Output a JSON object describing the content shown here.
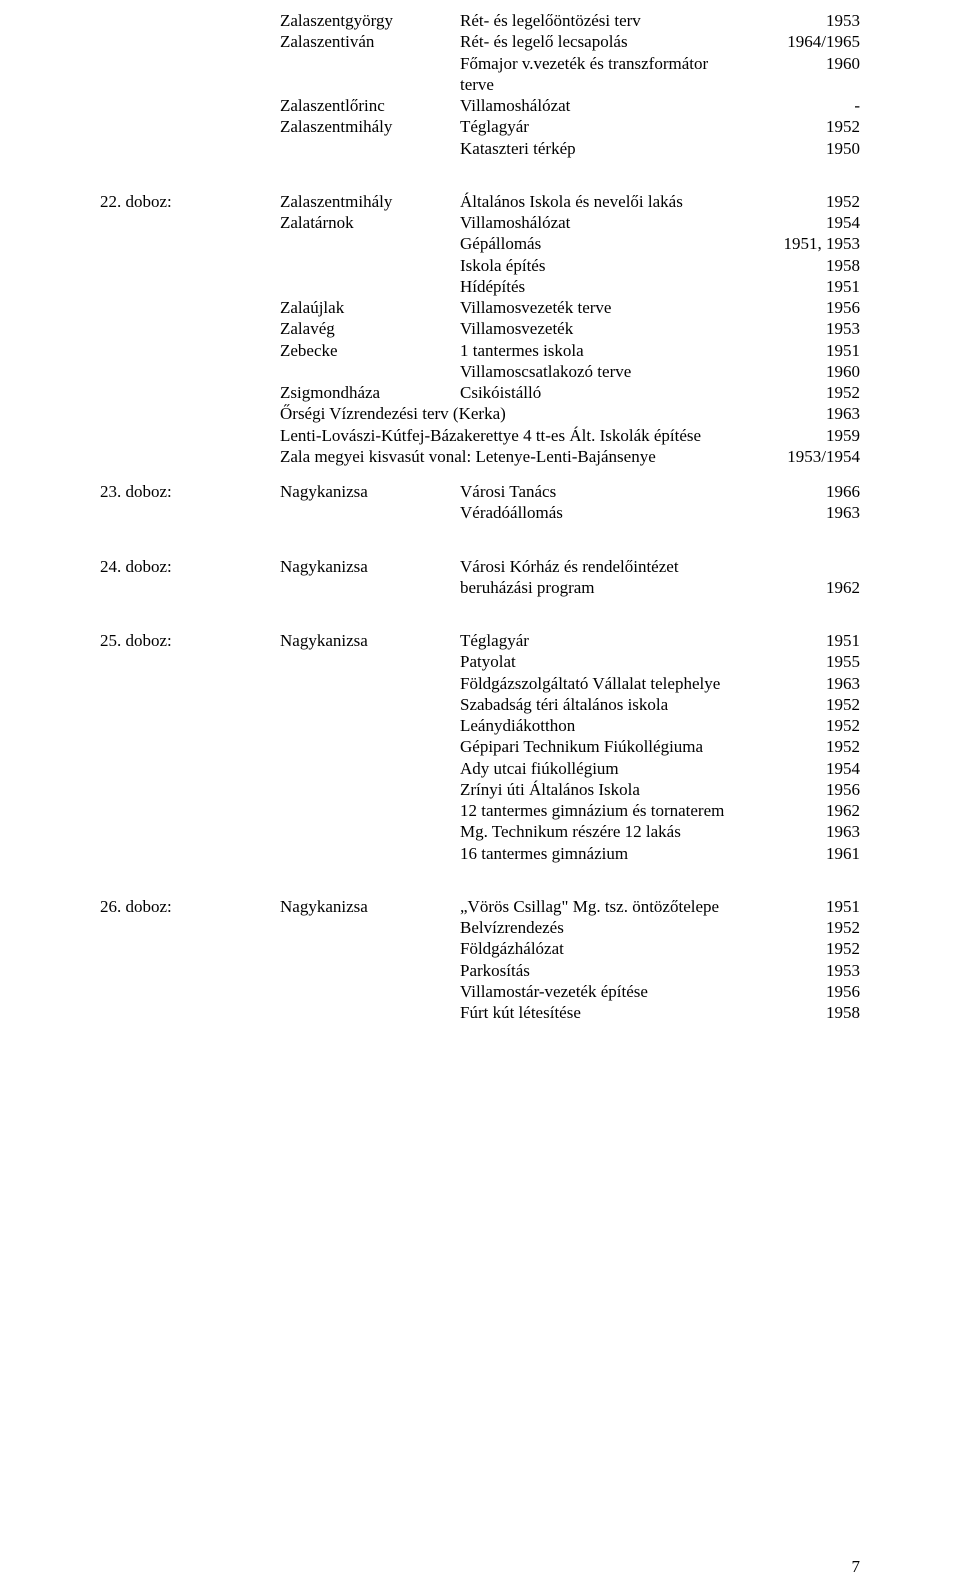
{
  "block_top": {
    "rows": [
      {
        "c1": "Zalaszentgyörgy",
        "c2": "Rét- és legelőöntözési terv",
        "c3": "1953"
      },
      {
        "c1": "Zalaszentiván",
        "c2": "Rét- és legelő lecsapolás",
        "c3": "1964/1965"
      },
      {
        "c1": "",
        "c2": "Főmajor v.vezeték és transzformátor",
        "c3": "1960"
      },
      {
        "c1": "",
        "c2": "terve",
        "c3": ""
      },
      {
        "c1": "Zalaszentlőrinc",
        "c2": "Villamoshálózat",
        "c3": "-"
      },
      {
        "c1": "Zalaszentmihály",
        "c2": "Téglagyár",
        "c3": "1952"
      },
      {
        "c1": "",
        "c2": "Kataszteri térkép",
        "c3": "1950"
      }
    ]
  },
  "block22": {
    "label": "22. doboz:",
    "rows": [
      {
        "c1": "Zalaszentmihály",
        "c2": "Általános Iskola és nevelői lakás",
        "c3": "1952"
      },
      {
        "c1": "Zalatárnok",
        "c2": "Villamoshálózat",
        "c3": "1954"
      },
      {
        "c1": "",
        "c2": "Gépállomás",
        "c3": "1951, 1953"
      },
      {
        "c1": "",
        "c2": "Iskola építés",
        "c3": "1958"
      },
      {
        "c1": "",
        "c2": "Hídépítés",
        "c3": "1951"
      },
      {
        "c1": "Zalaújlak",
        "c2": "Villamosvezeték terve",
        "c3": "1956"
      },
      {
        "c1": "Zalavég",
        "c2": "Villamosvezeték",
        "c3": "1953"
      },
      {
        "c1": "Zebecke",
        "c2": "1 tantermes iskola",
        "c3": "1951"
      },
      {
        "c1": "",
        "c2": "Villamoscsatlakozó terve",
        "c3": "1960"
      },
      {
        "c1": "Zsigmondháza",
        "c2": "Csikóistálló",
        "c3": "1952"
      }
    ],
    "tailrows": [
      {
        "text": "Őrségi Vízrendezési terv (Kerka)",
        "year": "1963"
      },
      {
        "text": "Lenti-Lovászi-Kútfej-Bázakerettye 4 tt-es Ált. Iskolák építése",
        "year": "1959"
      },
      {
        "text": "Zala megyei kisvasút vonal: Letenye-Lenti-Bajánsenye",
        "year": "1953/1954"
      }
    ]
  },
  "block23": {
    "label": "23. doboz:",
    "rows": [
      {
        "c1": "Nagykanizsa",
        "c2": "Városi Tanács",
        "c3": "1966"
      },
      {
        "c1": "",
        "c2": "Véradóállomás",
        "c3": "1963"
      }
    ]
  },
  "block24": {
    "label": "24. doboz:",
    "rows": [
      {
        "c1": "Nagykanizsa",
        "c2": "Városi Kórház és rendelőintézet",
        "c3": ""
      },
      {
        "c1": "",
        "c2": "beruházási program",
        "c3": "1962"
      }
    ]
  },
  "block25": {
    "label": "25. doboz:",
    "rows": [
      {
        "c1": "Nagykanizsa",
        "c2": "Téglagyár",
        "c3": "1951"
      },
      {
        "c1": "",
        "c2": "Patyolat",
        "c3": "1955"
      },
      {
        "c1": "",
        "c2": "Földgázszolgáltató Vállalat telephelye",
        "c3": "1963"
      },
      {
        "c1": "",
        "c2": "Szabadság téri általános iskola",
        "c3": "1952"
      },
      {
        "c1": "",
        "c2": "Leánydiákotthon",
        "c3": "1952"
      },
      {
        "c1": "",
        "c2": "Gépipari Technikum Fiúkollégiuma",
        "c3": "1952"
      },
      {
        "c1": "",
        "c2": "Ady utcai fiúkollégium",
        "c3": "1954"
      },
      {
        "c1": "",
        "c2": "Zrínyi úti Általános Iskola",
        "c3": "1956"
      },
      {
        "c1": "",
        "c2": "12 tantermes gimnázium és tornaterem",
        "c3": "1962"
      },
      {
        "c1": "",
        "c2": "Mg. Technikum részére 12 lakás",
        "c3": "1963"
      },
      {
        "c1": "",
        "c2": "16 tantermes gimnázium",
        "c3": "1961"
      }
    ]
  },
  "block26": {
    "label": "26. doboz:",
    "rows": [
      {
        "c1": "Nagykanizsa",
        "c2": "„Vörös Csillag\" Mg. tsz. öntözőtelepe",
        "c3": "1951"
      },
      {
        "c1": "",
        "c2": "Belvízrendezés",
        "c3": "1952"
      },
      {
        "c1": "",
        "c2": "Földgázhálózat",
        "c3": "1952"
      },
      {
        "c1": "",
        "c2": "Parkosítás",
        "c3": "1953"
      },
      {
        "c1": "",
        "c2": "Villamostár-vezeték építése",
        "c3": "1956"
      },
      {
        "c1": "",
        "c2": "Fúrt kút létesítése",
        "c3": "1958"
      }
    ]
  },
  "page_number": "7"
}
